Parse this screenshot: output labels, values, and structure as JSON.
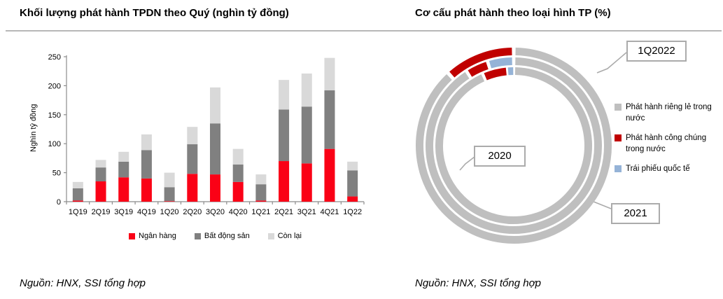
{
  "sources": {
    "left": "Nguồn: HNX, SSI tổng hợp",
    "right": "Nguồn: HNX, SSI tổng hợp"
  },
  "palette": {
    "bar_red": "#FA0116",
    "bar_dark_gray": "#808080",
    "bar_light_gray": "#D9D9D9",
    "donut_gray": "#BFBFBF",
    "donut_red": "#C00000",
    "donut_blue": "#95B3D7",
    "axis": "#8C8C8C",
    "rule": "#B7B7B7",
    "callout_border": "#ABABAB"
  },
  "chart_data": [
    {
      "type": "bar",
      "stacked": true,
      "title": "Khối lượng phát hành TPDN theo Quý (nghìn tỷ đồng)",
      "ylabel": "Nghìn tỷ đồng",
      "xlabel": "",
      "ylim": [
        0,
        250
      ],
      "yticks": [
        0,
        50,
        100,
        150,
        200,
        250
      ],
      "grid": false,
      "legend_position": "bottom",
      "categories": [
        "1Q19",
        "2Q19",
        "3Q19",
        "4Q19",
        "1Q20",
        "2Q20",
        "3Q20",
        "4Q20",
        "1Q21",
        "2Q21",
        "3Q21",
        "4Q21",
        "1Q22"
      ],
      "series": [
        {
          "name": "Ngân hàng",
          "color": "#FA0116",
          "values": [
            2,
            35,
            42,
            40,
            1,
            48,
            47,
            34,
            2,
            70,
            66,
            91,
            9
          ]
        },
        {
          "name": "Bất động sản",
          "color": "#808080",
          "values": [
            21,
            24,
            27,
            49,
            24,
            51,
            88,
            30,
            28,
            89,
            98,
            101,
            45
          ]
        },
        {
          "name": "Còn lại",
          "color": "#D9D9D9",
          "values": [
            11,
            13,
            17,
            27,
            25,
            30,
            62,
            27,
            17,
            51,
            57,
            56,
            15
          ]
        }
      ]
    },
    {
      "type": "pie",
      "subtype": "concentric-donut",
      "title": "Cơ cấu phát hành theo loại hình TP (%)",
      "legend_position": "right",
      "categories": [
        "Phát hành riêng lẻ trong nước",
        "Phát hành công chúng trong nước",
        "Trái phiếu quốc tế"
      ],
      "colors": [
        "#BFBFBF",
        "#C00000",
        "#95B3D7"
      ],
      "rings": [
        {
          "label": "2020",
          "position": "inner",
          "values": [
            93.5,
            5.2,
            1.3
          ]
        },
        {
          "label": "2021",
          "position": "middle",
          "values": [
            91.0,
            4.2,
            4.8
          ]
        },
        {
          "label": "1Q2022",
          "position": "outer",
          "values": [
            88.3,
            11.7,
            0
          ]
        }
      ]
    }
  ]
}
